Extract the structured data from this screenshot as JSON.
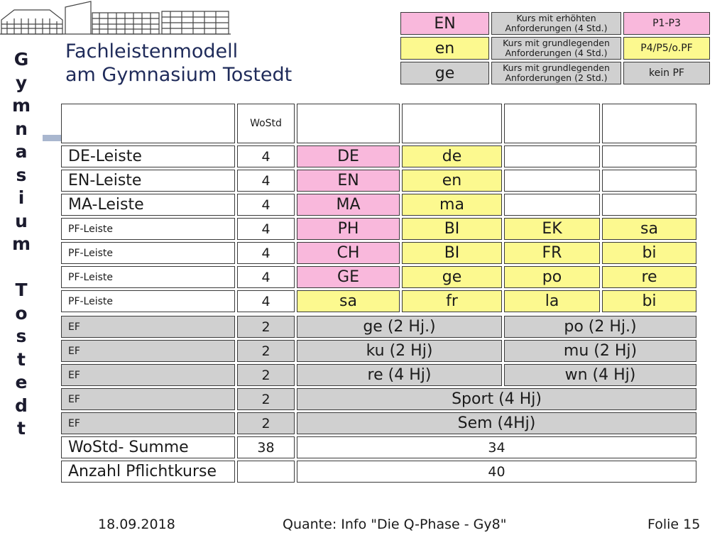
{
  "vertical_title": [
    "G",
    "y",
    "m",
    "n",
    "a",
    "s",
    "i",
    "u",
    "m",
    "",
    "T",
    "o",
    "s",
    "t",
    "e",
    "d",
    "t"
  ],
  "title_line1": "Fachleistenmodell",
  "title_line2": "am Gymnasium Tostedt",
  "legend": [
    {
      "code": "EN",
      "desc": "Kurs mit erhöhten Anforderungen (4 Std.)",
      "exam": "P1-P3"
    },
    {
      "code": "en",
      "desc": "Kurs mit grundlegenden Anforderungen (4 Std.)",
      "exam": "P4/P5/o.PF"
    },
    {
      "code": "ge",
      "desc": "Kurs mit grundlegenden Anforderungen (2 Std.)",
      "exam": "kein PF"
    }
  ],
  "header_wostd": "WoStd",
  "rows": [
    {
      "label": "DE-Leiste",
      "hours": "4",
      "c1": "DE",
      "c2": "de",
      "c3": "",
      "c4": ""
    },
    {
      "label": "EN-Leiste",
      "hours": "4",
      "c1": "EN",
      "c2": "en",
      "c3": "",
      "c4": ""
    },
    {
      "label": "MA-Leiste",
      "hours": "4",
      "c1": "MA",
      "c2": "ma",
      "c3": "",
      "c4": ""
    },
    {
      "label": "PF-Leiste",
      "hours": "4",
      "c1": "PH",
      "c2": "BI",
      "c3": "EK",
      "c4": "sa"
    },
    {
      "label": "PF-Leiste",
      "hours": "4",
      "c1": "CH",
      "c2": "BI",
      "c3": "FR",
      "c4": "bi"
    },
    {
      "label": "PF-Leiste",
      "hours": "4",
      "c1": "GE",
      "c2": "ge",
      "c3": "po",
      "c4": "re"
    },
    {
      "label": "PF-Leiste",
      "hours": "4",
      "c1": "sa",
      "c2": "fr",
      "c3": "la",
      "c4": "bi"
    }
  ],
  "ef_rows": [
    {
      "label": "EF",
      "hours": "2",
      "left": "ge (2 Hj.)",
      "right": "po (2 Hj.)"
    },
    {
      "label": "EF",
      "hours": "2",
      "left": "ku (2 Hj)",
      "right": "mu (2 Hj)"
    },
    {
      "label": "EF",
      "hours": "2",
      "left": "re (4 Hj)",
      "right": "wn (4 Hj)"
    },
    {
      "label": "EF",
      "hours": "2",
      "full": "Sport (4 Hj)"
    },
    {
      "label": "EF",
      "hours": "2",
      "full": "Sem (4Hj)"
    }
  ],
  "sum_row": {
    "label": "WoStd- Summe",
    "hours": "38",
    "value": "34"
  },
  "count_row": {
    "label": "Anzahl Pflichtkurse",
    "hours": "",
    "value": "40"
  },
  "footer": {
    "date": "18.09.2018",
    "center": "Quante: Info \"Die Q-Phase - Gy8\"",
    "page": "Folie 15"
  }
}
